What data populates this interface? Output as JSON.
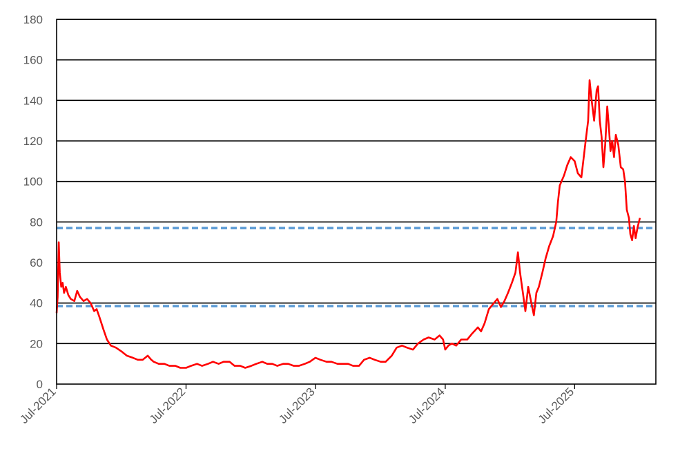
{
  "chart_data": {
    "type": "line",
    "title": "",
    "xlabel": "",
    "ylabel": "",
    "ylim": [
      0,
      180
    ],
    "yticks": [
      0,
      20,
      40,
      60,
      80,
      100,
      120,
      140,
      160,
      180
    ],
    "xlim": [
      "2021-07-01",
      "2026-02-15"
    ],
    "xticks": [
      {
        "date": "2021-07-01",
        "label": "Jul-2021"
      },
      {
        "date": "2022-07-01",
        "label": "Jul-2022"
      },
      {
        "date": "2023-07-01",
        "label": "Jul-2023"
      },
      {
        "date": "2024-07-01",
        "label": "Jul-2024"
      },
      {
        "date": "2025-07-01",
        "label": "Jul-2025"
      }
    ],
    "grid": "horizontal",
    "legend": "none",
    "series": [
      {
        "color": "#ff0000",
        "points": [
          [
            "2021-07-01",
            35
          ],
          [
            "2021-07-04",
            43
          ],
          [
            "2021-07-07",
            70
          ],
          [
            "2021-07-10",
            55
          ],
          [
            "2021-07-14",
            48
          ],
          [
            "2021-07-18",
            50
          ],
          [
            "2021-07-22",
            45
          ],
          [
            "2021-07-27",
            48
          ],
          [
            "2021-08-03",
            44
          ],
          [
            "2021-08-10",
            42
          ],
          [
            "2021-08-20",
            41
          ],
          [
            "2021-08-28",
            46
          ],
          [
            "2021-09-05",
            43
          ],
          [
            "2021-09-15",
            41
          ],
          [
            "2021-09-25",
            42
          ],
          [
            "2021-10-05",
            40
          ],
          [
            "2021-10-15",
            36
          ],
          [
            "2021-10-22",
            37
          ],
          [
            "2021-10-30",
            33
          ],
          [
            "2021-11-10",
            27
          ],
          [
            "2021-11-20",
            22
          ],
          [
            "2021-12-01",
            19
          ],
          [
            "2021-12-15",
            18
          ],
          [
            "2022-01-01",
            16
          ],
          [
            "2022-01-15",
            14
          ],
          [
            "2022-02-01",
            13
          ],
          [
            "2022-02-15",
            12
          ],
          [
            "2022-03-01",
            12
          ],
          [
            "2022-03-15",
            14
          ],
          [
            "2022-03-25",
            12
          ],
          [
            "2022-04-01",
            11
          ],
          [
            "2022-04-15",
            10
          ],
          [
            "2022-05-01",
            10
          ],
          [
            "2022-05-15",
            9
          ],
          [
            "2022-06-01",
            9
          ],
          [
            "2022-06-15",
            8
          ],
          [
            "2022-07-01",
            8
          ],
          [
            "2022-07-15",
            9
          ],
          [
            "2022-08-01",
            10
          ],
          [
            "2022-08-15",
            9
          ],
          [
            "2022-09-01",
            10
          ],
          [
            "2022-09-15",
            11
          ],
          [
            "2022-10-01",
            10
          ],
          [
            "2022-10-15",
            11
          ],
          [
            "2022-11-01",
            11
          ],
          [
            "2022-11-15",
            9
          ],
          [
            "2022-12-01",
            9
          ],
          [
            "2022-12-15",
            8
          ],
          [
            "2023-01-01",
            9
          ],
          [
            "2023-01-15",
            10
          ],
          [
            "2023-02-01",
            11
          ],
          [
            "2023-02-15",
            10
          ],
          [
            "2023-03-01",
            10
          ],
          [
            "2023-03-15",
            9
          ],
          [
            "2023-04-01",
            10
          ],
          [
            "2023-04-15",
            10
          ],
          [
            "2023-05-01",
            9
          ],
          [
            "2023-05-15",
            9
          ],
          [
            "2023-06-01",
            10
          ],
          [
            "2023-06-15",
            11
          ],
          [
            "2023-07-01",
            13
          ],
          [
            "2023-07-15",
            12
          ],
          [
            "2023-08-01",
            11
          ],
          [
            "2023-08-15",
            11
          ],
          [
            "2023-09-01",
            10
          ],
          [
            "2023-09-15",
            10
          ],
          [
            "2023-10-01",
            10
          ],
          [
            "2023-10-15",
            9
          ],
          [
            "2023-11-01",
            9
          ],
          [
            "2023-11-15",
            12
          ],
          [
            "2023-12-01",
            13
          ],
          [
            "2023-12-15",
            12
          ],
          [
            "2024-01-01",
            11
          ],
          [
            "2024-01-15",
            11
          ],
          [
            "2024-02-01",
            14
          ],
          [
            "2024-02-15",
            18
          ],
          [
            "2024-03-01",
            19
          ],
          [
            "2024-03-15",
            18
          ],
          [
            "2024-04-01",
            17
          ],
          [
            "2024-04-15",
            20
          ],
          [
            "2024-05-01",
            22
          ],
          [
            "2024-05-15",
            23
          ],
          [
            "2024-06-01",
            22
          ],
          [
            "2024-06-15",
            24
          ],
          [
            "2024-06-25",
            22
          ],
          [
            "2024-07-01",
            17
          ],
          [
            "2024-07-10",
            19
          ],
          [
            "2024-07-20",
            20
          ],
          [
            "2024-08-01",
            19
          ],
          [
            "2024-08-15",
            22
          ],
          [
            "2024-09-01",
            22
          ],
          [
            "2024-09-15",
            25
          ],
          [
            "2024-10-01",
            28
          ],
          [
            "2024-10-10",
            26
          ],
          [
            "2024-10-20",
            30
          ],
          [
            "2024-11-01",
            37
          ],
          [
            "2024-11-15",
            40
          ],
          [
            "2024-11-25",
            42
          ],
          [
            "2024-12-05",
            38
          ],
          [
            "2024-12-15",
            41
          ],
          [
            "2024-12-25",
            45
          ],
          [
            "2025-01-05",
            50
          ],
          [
            "2025-01-15",
            55
          ],
          [
            "2025-01-22",
            65
          ],
          [
            "2025-01-28",
            55
          ],
          [
            "2025-02-05",
            45
          ],
          [
            "2025-02-12",
            36
          ],
          [
            "2025-02-20",
            48
          ],
          [
            "2025-03-01",
            40
          ],
          [
            "2025-03-08",
            34
          ],
          [
            "2025-03-15",
            45
          ],
          [
            "2025-03-22",
            48
          ],
          [
            "2025-04-01",
            55
          ],
          [
            "2025-04-10",
            62
          ],
          [
            "2025-04-20",
            68
          ],
          [
            "2025-05-01",
            73
          ],
          [
            "2025-05-10",
            80
          ],
          [
            "2025-05-15",
            90
          ],
          [
            "2025-05-20",
            98
          ],
          [
            "2025-06-01",
            103
          ],
          [
            "2025-06-10",
            108
          ],
          [
            "2025-06-20",
            112
          ],
          [
            "2025-07-01",
            110
          ],
          [
            "2025-07-10",
            104
          ],
          [
            "2025-07-20",
            102
          ],
          [
            "2025-08-01",
            120
          ],
          [
            "2025-08-08",
            130
          ],
          [
            "2025-08-12",
            150
          ],
          [
            "2025-08-18",
            140
          ],
          [
            "2025-08-25",
            130
          ],
          [
            "2025-09-01",
            145
          ],
          [
            "2025-09-05",
            147
          ],
          [
            "2025-09-10",
            130
          ],
          [
            "2025-09-15",
            122
          ],
          [
            "2025-09-20",
            107
          ],
          [
            "2025-09-25",
            118
          ],
          [
            "2025-10-01",
            137
          ],
          [
            "2025-10-05",
            128
          ],
          [
            "2025-10-10",
            115
          ],
          [
            "2025-10-15",
            120
          ],
          [
            "2025-10-20",
            112
          ],
          [
            "2025-10-25",
            123
          ],
          [
            "2025-11-01",
            118
          ],
          [
            "2025-11-08",
            107
          ],
          [
            "2025-11-15",
            106
          ],
          [
            "2025-11-20",
            100
          ],
          [
            "2025-11-25",
            86
          ],
          [
            "2025-12-01",
            82
          ],
          [
            "2025-12-05",
            74
          ],
          [
            "2025-12-10",
            71
          ],
          [
            "2025-12-15",
            78
          ],
          [
            "2025-12-20",
            72
          ],
          [
            "2025-12-25",
            77
          ],
          [
            "2026-01-01",
            82
          ]
        ]
      }
    ],
    "reference_lines": [
      {
        "value": 77,
        "color": "#5b9bd5",
        "style": "dashed"
      },
      {
        "value": 38.5,
        "color": "#5b9bd5",
        "style": "dashed"
      }
    ]
  }
}
